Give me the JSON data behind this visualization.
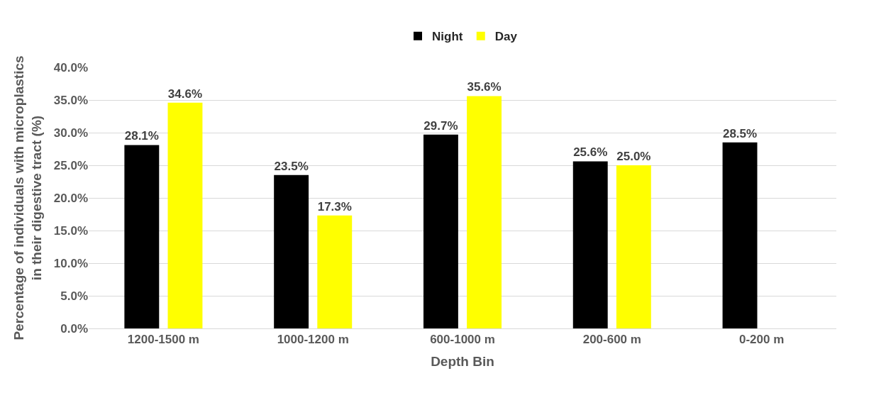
{
  "chart_data": {
    "type": "bar",
    "xlabel": "Depth Bin",
    "ylabel": "Percentage of individuals with microplastics in their digestive tract (%)",
    "categories": [
      "1200-1500 m",
      "1000-1200 m",
      "600-1000 m",
      "200-600 m",
      "0-200 m"
    ],
    "series": [
      {
        "name": "Night",
        "color": "#000000",
        "values": [
          28.1,
          23.5,
          29.7,
          25.6,
          28.5
        ],
        "value_labels": [
          "28.1%",
          "23.5%",
          "29.7%",
          "25.6%",
          "28.5%"
        ]
      },
      {
        "name": "Day",
        "color": "#ffff00",
        "values": [
          34.6,
          17.3,
          35.6,
          25.0,
          null
        ],
        "value_labels": [
          "34.6%",
          "17.3%",
          "35.6%",
          "25.0%",
          null
        ]
      }
    ],
    "ylim": [
      0,
      40
    ],
    "yticks": [
      {
        "value": 0,
        "label": "0.0%"
      },
      {
        "value": 5,
        "label": "5.0%"
      },
      {
        "value": 10,
        "label": "10.0%"
      },
      {
        "value": 15,
        "label": "15.0%"
      },
      {
        "value": 20,
        "label": "20.0%"
      },
      {
        "value": 25,
        "label": "25.0%"
      },
      {
        "value": 30,
        "label": "30.0%"
      },
      {
        "value": 35,
        "label": "35.0%"
      },
      {
        "value": 40,
        "label": "40.0%"
      }
    ],
    "grid": "y",
    "legend": "top"
  }
}
